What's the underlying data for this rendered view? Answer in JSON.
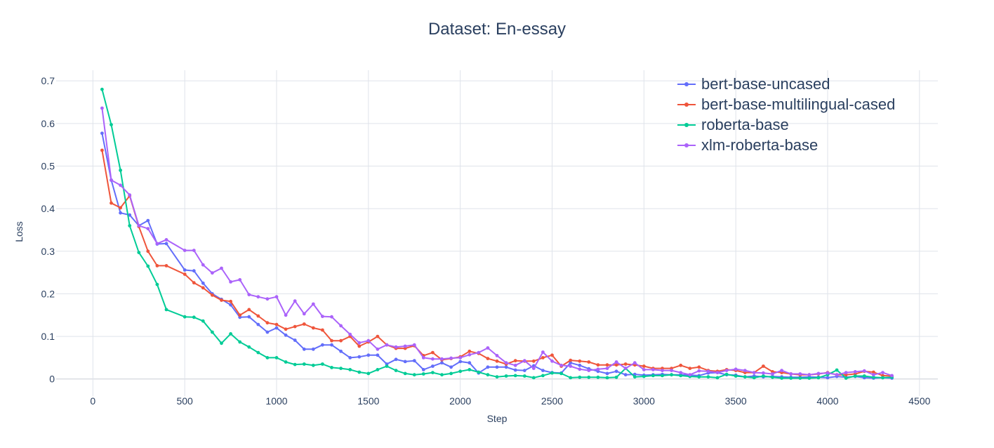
{
  "chart_data": {
    "type": "line",
    "title": "Dataset: En-essay",
    "xlabel": "Step",
    "ylabel": "Loss",
    "xlim": [
      -200,
      4600
    ],
    "ylim": [
      -0.04,
      0.725
    ],
    "xticks": [
      0,
      500,
      1000,
      1500,
      2000,
      2500,
      3000,
      3500,
      4000,
      4500
    ],
    "xtick_labels": [
      "0",
      "500",
      "1000",
      "1500",
      "2000",
      "2500",
      "3000",
      "3500",
      "4000",
      "4500"
    ],
    "yticks": [
      0,
      0.1,
      0.2,
      0.3,
      0.4,
      0.5,
      0.6,
      0.7
    ],
    "ytick_labels": [
      "0",
      "0.1",
      "0.2",
      "0.3",
      "0.4",
      "0.5",
      "0.6",
      "0.7"
    ],
    "grid": true,
    "legend_position": "top-right",
    "series": [
      {
        "name": "bert-base-uncased",
        "color": "#636efa",
        "x": [
          50,
          100,
          150,
          200,
          250,
          300,
          350,
          400,
          500,
          550,
          600,
          650,
          700,
          750,
          800,
          850,
          900,
          950,
          1000,
          1050,
          1100,
          1150,
          1200,
          1250,
          1300,
          1350,
          1400,
          1450,
          1500,
          1550,
          1600,
          1650,
          1700,
          1750,
          1800,
          1850,
          1900,
          1950,
          2000,
          2050,
          2100,
          2150,
          2200,
          2250,
          2300,
          2350,
          2400,
          2450,
          2500,
          2550,
          2600,
          2650,
          2700,
          2750,
          2800,
          2850,
          2900,
          2950,
          3000,
          3050,
          3100,
          3150,
          3200,
          3250,
          3300,
          3350,
          3400,
          3450,
          3500,
          3550,
          3600,
          3650,
          3700,
          3750,
          3800,
          3850,
          3900,
          3950,
          4000,
          4050,
          4100,
          4150,
          4200,
          4250,
          4300,
          4350
        ],
        "y": [
          0.577,
          0.467,
          0.39,
          0.385,
          0.36,
          0.372,
          0.317,
          0.318,
          0.256,
          0.254,
          0.225,
          0.2,
          0.187,
          0.174,
          0.145,
          0.146,
          0.128,
          0.11,
          0.12,
          0.103,
          0.091,
          0.07,
          0.07,
          0.08,
          0.08,
          0.065,
          0.05,
          0.052,
          0.056,
          0.056,
          0.035,
          0.046,
          0.041,
          0.043,
          0.022,
          0.03,
          0.038,
          0.028,
          0.041,
          0.038,
          0.014,
          0.028,
          0.028,
          0.028,
          0.021,
          0.02,
          0.031,
          0.02,
          0.015,
          0.014,
          0.038,
          0.032,
          0.024,
          0.018,
          0.013,
          0.018,
          0.01,
          0.011,
          0.009,
          0.01,
          0.011,
          0.01,
          0.01,
          0.009,
          0.008,
          0.014,
          0.015,
          0.01,
          0.009,
          0.005,
          0.007,
          0.005,
          0.006,
          0.005,
          0.004,
          0.004,
          0.005,
          0.004,
          0.003,
          0.006,
          0.004,
          0.006,
          0.003,
          0.002,
          0.003,
          0.002
        ]
      },
      {
        "name": "bert-base-multilingual-cased",
        "color": "#ef553b",
        "x": [
          50,
          100,
          150,
          200,
          250,
          300,
          350,
          400,
          500,
          550,
          600,
          650,
          700,
          750,
          800,
          850,
          900,
          950,
          1000,
          1050,
          1100,
          1150,
          1200,
          1250,
          1300,
          1350,
          1400,
          1450,
          1500,
          1550,
          1600,
          1650,
          1700,
          1750,
          1800,
          1850,
          1900,
          1950,
          2000,
          2050,
          2100,
          2150,
          2200,
          2250,
          2300,
          2350,
          2400,
          2450,
          2500,
          2550,
          2600,
          2650,
          2700,
          2750,
          2800,
          2850,
          2900,
          2950,
          3000,
          3050,
          3100,
          3150,
          3200,
          3250,
          3300,
          3350,
          3400,
          3450,
          3500,
          3550,
          3600,
          3650,
          3700,
          3750,
          3800,
          3850,
          3900,
          3950,
          4000,
          4050,
          4100,
          4150,
          4200,
          4250,
          4300,
          4350
        ],
        "y": [
          0.537,
          0.413,
          0.402,
          0.43,
          0.358,
          0.3,
          0.266,
          0.266,
          0.246,
          0.226,
          0.214,
          0.197,
          0.185,
          0.182,
          0.15,
          0.163,
          0.148,
          0.132,
          0.128,
          0.117,
          0.123,
          0.129,
          0.12,
          0.115,
          0.09,
          0.09,
          0.1,
          0.077,
          0.087,
          0.1,
          0.08,
          0.072,
          0.072,
          0.078,
          0.055,
          0.062,
          0.045,
          0.048,
          0.052,
          0.065,
          0.06,
          0.048,
          0.042,
          0.035,
          0.043,
          0.042,
          0.042,
          0.05,
          0.056,
          0.03,
          0.044,
          0.042,
          0.04,
          0.033,
          0.033,
          0.033,
          0.035,
          0.033,
          0.03,
          0.025,
          0.025,
          0.025,
          0.032,
          0.025,
          0.028,
          0.02,
          0.018,
          0.022,
          0.02,
          0.015,
          0.015,
          0.03,
          0.017,
          0.015,
          0.012,
          0.01,
          0.01,
          0.012,
          0.015,
          0.01,
          0.01,
          0.012,
          0.018,
          0.016,
          0.008,
          0.007
        ]
      },
      {
        "name": "roberta-base",
        "color": "#00cc96",
        "x": [
          50,
          100,
          150,
          200,
          250,
          300,
          350,
          400,
          500,
          550,
          600,
          650,
          700,
          750,
          800,
          850,
          900,
          950,
          1000,
          1050,
          1100,
          1150,
          1200,
          1250,
          1300,
          1350,
          1400,
          1450,
          1500,
          1550,
          1600,
          1650,
          1700,
          1750,
          1800,
          1850,
          1900,
          1950,
          2000,
          2050,
          2100,
          2150,
          2200,
          2250,
          2300,
          2350,
          2400,
          2450,
          2500,
          2550,
          2600,
          2650,
          2700,
          2750,
          2800,
          2850,
          2900,
          2950,
          3000,
          3050,
          3100,
          3150,
          3200,
          3250,
          3300,
          3350,
          3400,
          3450,
          3500,
          3550,
          3600,
          3650,
          3700,
          3750,
          3800,
          3850,
          3900,
          3950,
          4000,
          4050,
          4100,
          4150,
          4200,
          4250,
          4300,
          4350
        ],
        "y": [
          0.68,
          0.597,
          0.49,
          0.36,
          0.297,
          0.265,
          0.222,
          0.163,
          0.146,
          0.145,
          0.136,
          0.11,
          0.084,
          0.106,
          0.087,
          0.075,
          0.062,
          0.05,
          0.05,
          0.04,
          0.034,
          0.035,
          0.032,
          0.035,
          0.027,
          0.025,
          0.022,
          0.016,
          0.013,
          0.022,
          0.03,
          0.02,
          0.013,
          0.01,
          0.012,
          0.015,
          0.01,
          0.013,
          0.018,
          0.022,
          0.016,
          0.01,
          0.005,
          0.007,
          0.008,
          0.007,
          0.003,
          0.008,
          0.014,
          0.013,
          0.003,
          0.004,
          0.004,
          0.004,
          0.003,
          0.004,
          0.025,
          0.005,
          0.006,
          0.008,
          0.008,
          0.01,
          0.008,
          0.006,
          0.005,
          0.005,
          0.003,
          0.011,
          0.007,
          0.005,
          0.003,
          0.007,
          0.004,
          0.002,
          0.002,
          0.002,
          0.002,
          0.003,
          0.01,
          0.021,
          0.002,
          0.007,
          0.007,
          0.004,
          0.003,
          0.004
        ]
      },
      {
        "name": "xlm-roberta-base",
        "color": "#ab63fa",
        "x": [
          50,
          100,
          150,
          200,
          250,
          300,
          350,
          400,
          500,
          550,
          600,
          650,
          700,
          750,
          800,
          850,
          900,
          950,
          1000,
          1050,
          1100,
          1150,
          1200,
          1250,
          1300,
          1350,
          1400,
          1450,
          1500,
          1550,
          1600,
          1650,
          1700,
          1750,
          1800,
          1850,
          1900,
          1950,
          2000,
          2050,
          2100,
          2150,
          2200,
          2250,
          2300,
          2350,
          2400,
          2450,
          2500,
          2550,
          2600,
          2650,
          2700,
          2750,
          2800,
          2850,
          2900,
          2950,
          3000,
          3050,
          3100,
          3150,
          3200,
          3250,
          3300,
          3350,
          3400,
          3450,
          3500,
          3550,
          3600,
          3650,
          3700,
          3750,
          3800,
          3850,
          3900,
          3950,
          4000,
          4050,
          4100,
          4150,
          4200,
          4250,
          4300,
          4350
        ],
        "y": [
          0.636,
          0.467,
          0.455,
          0.432,
          0.36,
          0.353,
          0.318,
          0.327,
          0.302,
          0.302,
          0.268,
          0.249,
          0.26,
          0.228,
          0.233,
          0.198,
          0.193,
          0.188,
          0.193,
          0.15,
          0.183,
          0.153,
          0.176,
          0.147,
          0.146,
          0.125,
          0.105,
          0.085,
          0.09,
          0.07,
          0.08,
          0.075,
          0.077,
          0.08,
          0.05,
          0.047,
          0.047,
          0.049,
          0.05,
          0.057,
          0.062,
          0.073,
          0.055,
          0.038,
          0.032,
          0.043,
          0.025,
          0.063,
          0.042,
          0.032,
          0.03,
          0.023,
          0.02,
          0.023,
          0.025,
          0.04,
          0.025,
          0.038,
          0.022,
          0.022,
          0.02,
          0.02,
          0.015,
          0.01,
          0.019,
          0.018,
          0.015,
          0.02,
          0.023,
          0.02,
          0.015,
          0.014,
          0.012,
          0.02,
          0.012,
          0.012,
          0.01,
          0.013,
          0.014,
          0.01,
          0.015,
          0.017,
          0.019,
          0.01,
          0.015,
          0.008
        ]
      }
    ]
  }
}
